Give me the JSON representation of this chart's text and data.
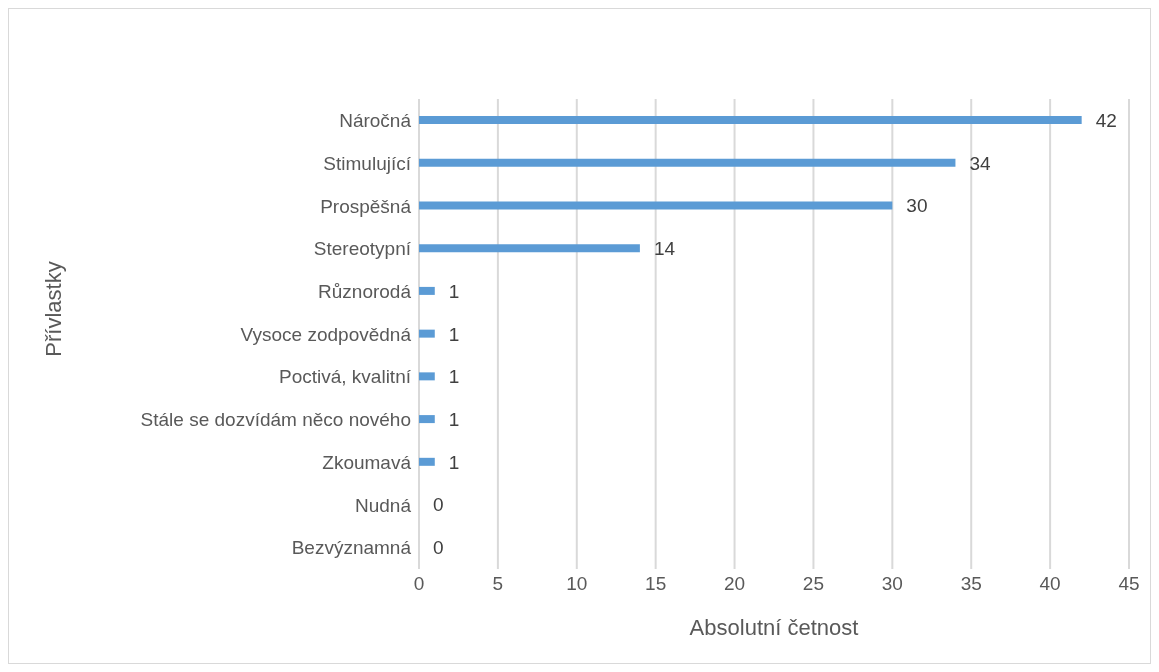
{
  "chart_data": {
    "type": "bar",
    "orientation": "horizontal",
    "xlabel": "Absolutní četnost",
    "ylabel": "Přívlastky",
    "categories": [
      "Náročná",
      "Stimulující",
      "Prospěšná",
      "Stereotypní",
      "Různorodá",
      "Vysoce zodpovědná",
      "Poctivá, kvalitní",
      "Stále se dozvídám něco nového",
      "Zkoumavá",
      "Nudná",
      "Bezvýznamná"
    ],
    "values": [
      42,
      34,
      30,
      14,
      1,
      1,
      1,
      1,
      1,
      0,
      0
    ],
    "color": "#5b9bd5",
    "xlim": [
      0,
      45
    ],
    "xticks": [
      0,
      5,
      10,
      15,
      20,
      25,
      30,
      35,
      40,
      45
    ],
    "grid": "x",
    "data_labels": true
  }
}
